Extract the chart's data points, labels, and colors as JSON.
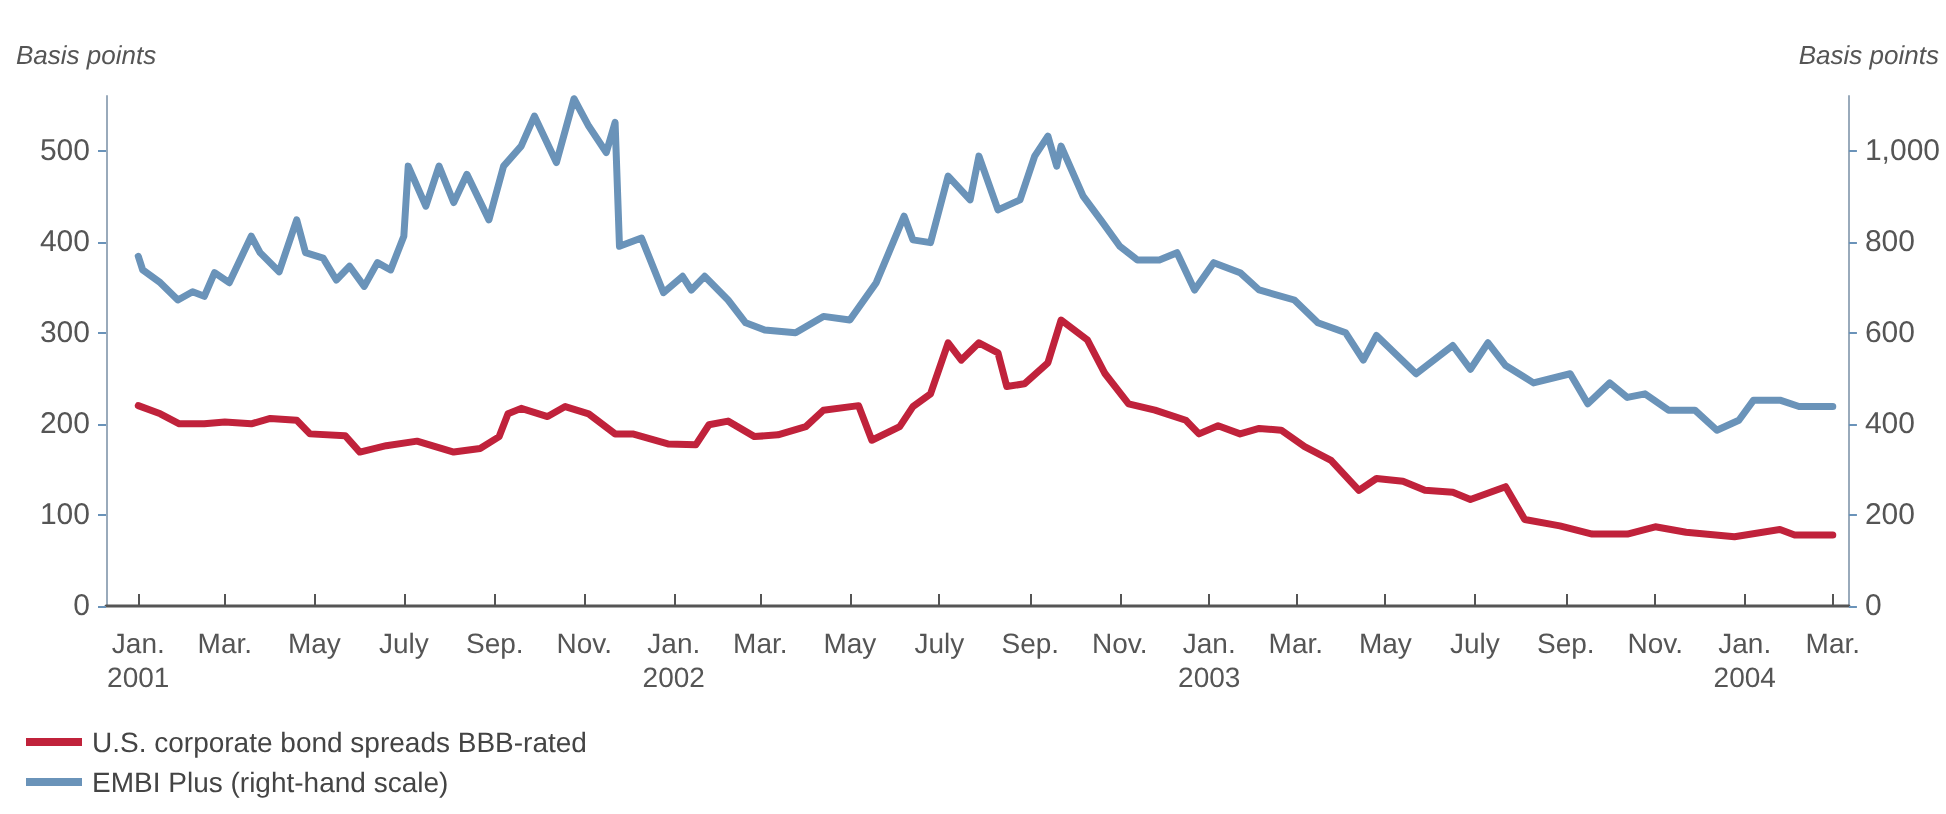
{
  "chart_data": {
    "type": "line",
    "ylabel": "Basis points",
    "y2label": "Basis points",
    "xlim": [
      "2000-12-10",
      "2004-03-12"
    ],
    "xticks": [
      {
        "value": "2001-01-01",
        "label": "Jan.\n2001"
      },
      {
        "value": "2001-03-01",
        "label": "Mar."
      },
      {
        "value": "2001-05-01",
        "label": "May"
      },
      {
        "value": "2001-07-01",
        "label": "July"
      },
      {
        "value": "2001-09-01",
        "label": "Sep."
      },
      {
        "value": "2001-11-01",
        "label": "Nov."
      },
      {
        "value": "2002-01-01",
        "label": "Jan.\n2002"
      },
      {
        "value": "2002-03-01",
        "label": "Mar."
      },
      {
        "value": "2002-05-01",
        "label": "May"
      },
      {
        "value": "2002-07-01",
        "label": "July"
      },
      {
        "value": "2002-09-01",
        "label": "Sep."
      },
      {
        "value": "2002-11-01",
        "label": "Nov."
      },
      {
        "value": "2003-01-01",
        "label": "Jan.\n2003"
      },
      {
        "value": "2003-03-01",
        "label": "Mar."
      },
      {
        "value": "2003-05-01",
        "label": "May"
      },
      {
        "value": "2003-07-01",
        "label": "July"
      },
      {
        "value": "2003-09-01",
        "label": "Sep."
      },
      {
        "value": "2003-11-01",
        "label": "Nov."
      },
      {
        "value": "2004-01-01",
        "label": "Jan.\n2004"
      },
      {
        "value": "2004-03-01",
        "label": "Mar."
      }
    ],
    "ylim": [
      0,
      560
    ],
    "yticks": [
      0,
      100,
      200,
      300,
      400,
      500
    ],
    "y2lim": [
      0,
      1120
    ],
    "y2ticks": [
      0,
      200,
      400,
      600,
      800,
      {
        "value": 1000,
        "label": "1,000"
      }
    ],
    "grid": false,
    "legend": "bottom left",
    "marker": "none",
    "line_style": "solid",
    "series": [
      {
        "name": "U.S. corporate bond spreads BBB-rated",
        "color": "#c0223b",
        "x": [
          "2001-01-01",
          "2001-01-16",
          "2001-01-29",
          "2001-02-15",
          "2001-03-01",
          "2001-03-19",
          "2001-04-01",
          "2001-04-19",
          "2001-04-28",
          "2001-05-22",
          "2001-06-01",
          "2001-06-19",
          "2001-07-10",
          "2001-08-04",
          "2001-08-22",
          "2001-09-04",
          "2001-09-10",
          "2001-09-19",
          "2001-10-07",
          "2001-10-19",
          "2001-11-04",
          "2001-11-22",
          "2001-12-04",
          "2001-12-28",
          "2002-01-16",
          "2002-01-25",
          "2002-02-07",
          "2002-02-25",
          "2002-03-13",
          "2002-04-01",
          "2002-04-13",
          "2002-05-07",
          "2002-05-16",
          "2002-06-04",
          "2002-06-13",
          "2002-06-25",
          "2002-07-07",
          "2002-07-16",
          "2002-07-28",
          "2002-08-10",
          "2002-08-16",
          "2002-08-28",
          "2002-09-13",
          "2002-09-22",
          "2002-10-10",
          "2002-10-22",
          "2002-11-07",
          "2002-11-25",
          "2002-12-16",
          "2002-12-25",
          "2003-01-07",
          "2003-01-22",
          "2003-02-04",
          "2003-02-19",
          "2003-03-07",
          "2003-03-25",
          "2003-04-13",
          "2003-04-25",
          "2003-05-13",
          "2003-05-28",
          "2003-06-16",
          "2003-06-28",
          "2003-07-22",
          "2003-08-04",
          "2003-08-28",
          "2003-09-19",
          "2003-10-13",
          "2003-11-01",
          "2003-11-22",
          "2003-12-25",
          "2004-01-25",
          "2004-02-04",
          "2004-03-01"
        ],
        "values": [
          220,
          211,
          200,
          200,
          202,
          200,
          206,
          204,
          189,
          187,
          169,
          176,
          181,
          169,
          173,
          186,
          211,
          217,
          208,
          219,
          211,
          189,
          189,
          178,
          177,
          199,
          203,
          186,
          188,
          197,
          215,
          220,
          182,
          197,
          219,
          233,
          289,
          270,
          289,
          278,
          241,
          244,
          267,
          314,
          292,
          255,
          222,
          215,
          204,
          189,
          198,
          189,
          195,
          193,
          175,
          160,
          127,
          140,
          137,
          127,
          125,
          117,
          131,
          95,
          88,
          79,
          79,
          87,
          81,
          76,
          84,
          78,
          78
        ]
      },
      {
        "name": "EMBI Plus (right-hand scale)",
        "color": "#6a93b9",
        "axis": "y2",
        "x": [
          "2001-01-01",
          "2001-01-04",
          "2001-01-16",
          "2001-01-28",
          "2001-02-07",
          "2001-02-15",
          "2001-02-22",
          "2001-03-04",
          "2001-03-19",
          "2001-03-25",
          "2001-04-07",
          "2001-04-19",
          "2001-04-25",
          "2001-05-07",
          "2001-05-16",
          "2001-05-25",
          "2001-06-04",
          "2001-06-13",
          "2001-06-22",
          "2001-07-01",
          "2001-07-04",
          "2001-07-16",
          "2001-07-25",
          "2001-08-04",
          "2001-08-13",
          "2001-08-28",
          "2001-09-07",
          "2001-09-19",
          "2001-09-28",
          "2001-10-13",
          "2001-10-25",
          "2001-11-04",
          "2001-11-16",
          "2001-11-22",
          "2001-11-25",
          "2001-12-10",
          "2001-12-25",
          "2002-01-07",
          "2002-01-13",
          "2002-01-22",
          "2002-02-07",
          "2002-02-19",
          "2002-03-04",
          "2002-03-25",
          "2002-04-13",
          "2002-05-01",
          "2002-05-19",
          "2002-06-07",
          "2002-06-13",
          "2002-06-25",
          "2002-07-07",
          "2002-07-22",
          "2002-07-28",
          "2002-08-10",
          "2002-08-25",
          "2002-09-04",
          "2002-09-13",
          "2002-09-19",
          "2002-09-22",
          "2002-10-07",
          "2002-10-19",
          "2002-11-01",
          "2002-11-13",
          "2002-11-28",
          "2002-12-10",
          "2002-12-22",
          "2003-01-04",
          "2003-01-22",
          "2003-02-04",
          "2003-02-28",
          "2003-03-16",
          "2003-04-04",
          "2003-04-16",
          "2003-04-25",
          "2003-05-22",
          "2003-06-16",
          "2003-06-28",
          "2003-07-10",
          "2003-07-22",
          "2003-08-10",
          "2003-09-04",
          "2003-09-16",
          "2003-10-01",
          "2003-10-13",
          "2003-10-25",
          "2003-11-10",
          "2003-11-28",
          "2003-12-13",
          "2003-12-28",
          "2004-01-07",
          "2004-01-25",
          "2004-02-07",
          "2004-03-01"
        ],
        "values": [
          768,
          738,
          710,
          672,
          690,
          680,
          732,
          710,
          812,
          776,
          734,
          848,
          776,
          764,
          716,
          746,
          702,
          754,
          738,
          812,
          966,
          878,
          966,
          886,
          948,
          848,
          966,
          1010,
          1076,
          974,
          1114,
          1054,
          996,
          1062,
          790,
          808,
          688,
          724,
          694,
          724,
          672,
          622,
          606,
          600,
          636,
          628,
          710,
          856,
          804,
          798,
          944,
          892,
          988,
          870,
          892,
          988,
          1032,
          966,
          1010,
          900,
          848,
          790,
          760,
          760,
          776,
          694,
          754,
          732,
          694,
          672,
          622,
          600,
          540,
          594,
          510,
          572,
          520,
          578,
          528,
          490,
          510,
          444,
          490,
          458,
          466,
          430,
          430,
          386,
          408,
          452,
          452,
          438,
          438
        ]
      }
    ]
  }
}
